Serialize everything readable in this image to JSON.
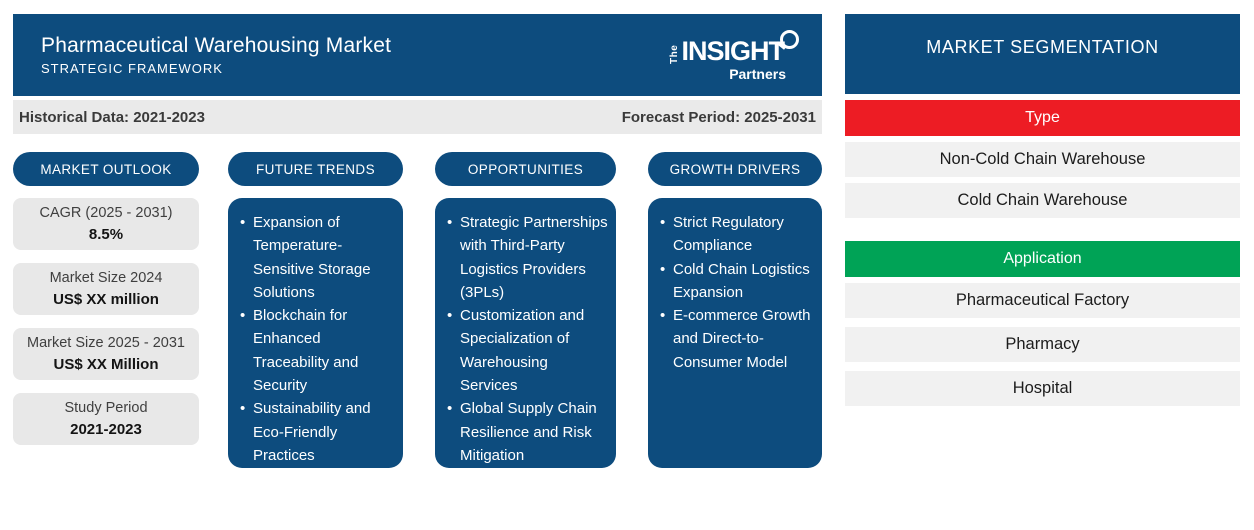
{
  "header": {
    "title": "Pharmaceutical Warehousing Market",
    "subtitle": "STRATEGIC FRAMEWORK",
    "logo": {
      "the": "The",
      "insight": "INSIGHT",
      "partners": "Partners"
    }
  },
  "period_bar": {
    "historical": "Historical Data: 2021-2023",
    "forecast": "Forecast Period: 2025-2031"
  },
  "columns": {
    "market_outlook": {
      "label": "MARKET OUTLOOK",
      "stats": [
        {
          "label": "CAGR (2025 - 2031)",
          "value": "8.5%"
        },
        {
          "label": "Market Size 2024",
          "value": "US$ XX million"
        },
        {
          "label": "Market Size 2025 - 2031",
          "value": "US$ XX Million"
        },
        {
          "label": "Study Period",
          "value": "2021-2023"
        }
      ]
    },
    "future_trends": {
      "label": "FUTURE TRENDS",
      "items": [
        "Expansion of Temperature-Sensitive Storage Solutions",
        "Blockchain for Enhanced Traceability and Security",
        "Sustainability and Eco-Friendly Practices"
      ]
    },
    "opportunities": {
      "label": "OPPORTUNITIES",
      "items": [
        "Strategic Partnerships with Third-Party Logistics Providers (3PLs)",
        "Customization and Specialization of Warehousing Services",
        "Global Supply Chain Resilience and Risk Mitigation"
      ]
    },
    "growth_drivers": {
      "label": "GROWTH DRIVERS",
      "items": [
        "Strict Regulatory Compliance",
        "Cold Chain Logistics Expansion",
        "E-commerce Growth and Direct-to-Consumer Model"
      ]
    }
  },
  "segmentation": {
    "title": "MARKET SEGMENTATION",
    "groups": [
      {
        "label": "Type",
        "color": "#ed1c24",
        "items": [
          "Non-Cold Chain Warehouse",
          "Cold Chain Warehouse"
        ]
      },
      {
        "label": "Application",
        "color": "#00a356",
        "items": [
          "Pharmaceutical Factory",
          "Pharmacy",
          "Hospital"
        ]
      }
    ]
  },
  "colors": {
    "brand_blue": "#0d4c7e",
    "type_red": "#ed1c24",
    "application_green": "#00a356",
    "card_gray": "#e8e8e8",
    "row_gray": "#f1f1f1",
    "bar_gray": "#eaeaea"
  }
}
